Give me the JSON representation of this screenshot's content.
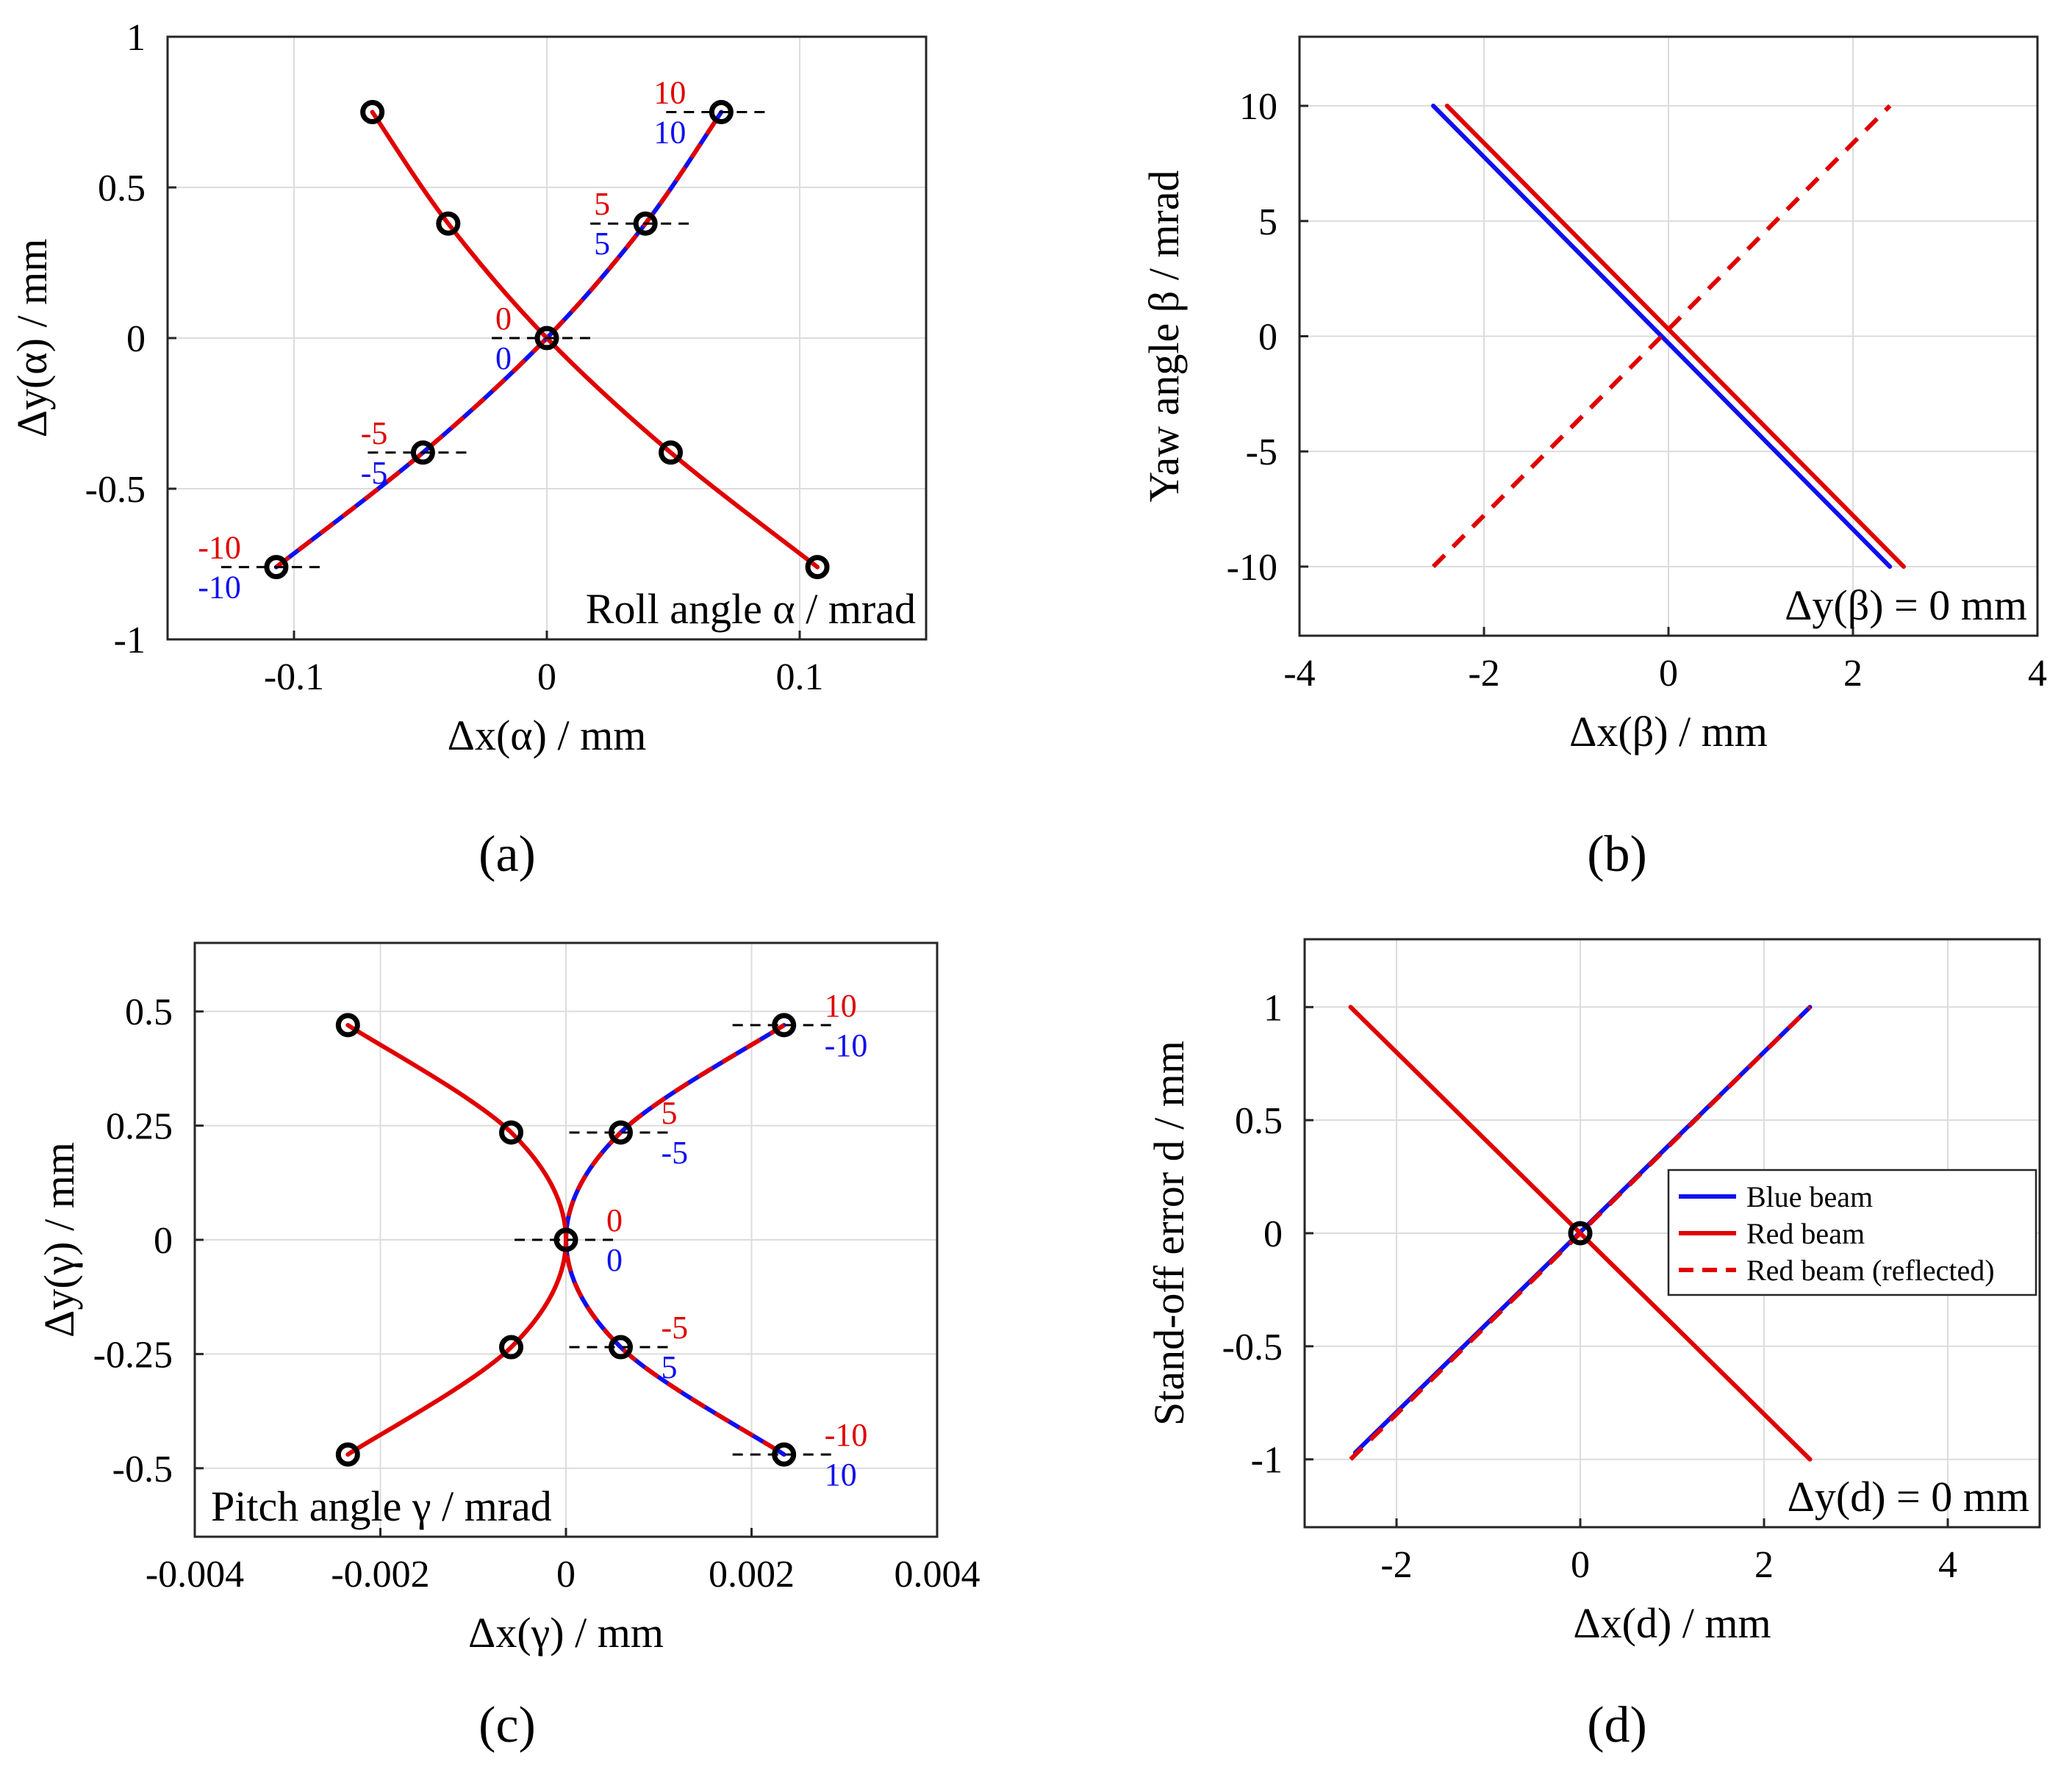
{
  "chart_data": [
    {
      "panel": "a",
      "type": "line",
      "xlabel": "Δx(α) / mm",
      "ylabel": "Δy(α) / mm",
      "annotation": "Roll angle α / mrad",
      "xlim": [
        -0.15,
        0.15
      ],
      "ylim": [
        -1,
        1
      ],
      "xticks": [
        -0.1,
        0,
        0.1
      ],
      "xtick_labels": [
        "-0.1",
        "0",
        "0.1"
      ],
      "yticks": [
        -1,
        -0.5,
        0,
        0.5,
        1
      ],
      "ytick_labels": [
        "-1",
        "-0.5",
        "0",
        "0.5",
        "1"
      ],
      "grid": true,
      "colors": {
        "blue": "#1010ee",
        "red": "#e00000",
        "marker": "#000000"
      },
      "series": [
        {
          "name": "Blue beam",
          "style": "solid-blue",
          "x": [
            -0.107,
            -0.049,
            0,
            0.039,
            0.069
          ],
          "y": [
            -0.76,
            -0.38,
            0,
            0.38,
            0.75
          ]
        },
        {
          "name": "Red beam",
          "style": "dashed-red",
          "x": [
            -0.107,
            -0.049,
            0,
            0.039,
            0.069
          ],
          "y": [
            -0.76,
            -0.38,
            0,
            0.38,
            0.75
          ]
        },
        {
          "name": "Red beam (reflected)",
          "style": "solid-red",
          "x": [
            -0.069,
            -0.039,
            0,
            0.049,
            0.107
          ],
          "y": [
            0.75,
            0.38,
            0,
            -0.38,
            -0.76
          ]
        }
      ],
      "markers": [
        {
          "x": -0.069,
          "y": 0.75
        },
        {
          "x": -0.039,
          "y": 0.38
        },
        {
          "x": 0,
          "y": 0
        },
        {
          "x": 0.049,
          "y": -0.38
        },
        {
          "x": 0.107,
          "y": -0.76
        },
        {
          "x": 0.069,
          "y": 0.75
        },
        {
          "x": 0.039,
          "y": 0.38
        },
        {
          "x": -0.049,
          "y": -0.38
        },
        {
          "x": -0.107,
          "y": -0.76
        }
      ],
      "value_labels": [
        {
          "x": 0.069,
          "y": 0.75,
          "red": "10",
          "blue": "10",
          "side": "left"
        },
        {
          "x": 0.039,
          "y": 0.38,
          "red": "5",
          "blue": "5",
          "side": "left"
        },
        {
          "x": 0,
          "y": 0,
          "red": "0",
          "blue": "0",
          "side": "left"
        },
        {
          "x": -0.049,
          "y": -0.38,
          "red": "-5",
          "blue": "-5",
          "side": "left"
        },
        {
          "x": -0.107,
          "y": -0.76,
          "red": "-10",
          "blue": "-10",
          "side": "left"
        }
      ]
    },
    {
      "panel": "b",
      "type": "line",
      "xlabel": "Δx(β) / mm",
      "ylabel": "Yaw angle β / mrad",
      "annotation": "Δy(β) = 0 mm",
      "xlim": [
        -4,
        4
      ],
      "ylim": [
        -13,
        13
      ],
      "xticks": [
        -4,
        -2,
        0,
        2,
        4
      ],
      "xtick_labels": [
        "-4",
        "-2",
        "0",
        "2",
        "4"
      ],
      "yticks": [
        -10,
        -5,
        0,
        5,
        10
      ],
      "ytick_labels": [
        "-10",
        "-5",
        "0",
        "5",
        "10"
      ],
      "grid": true,
      "series": [
        {
          "name": "Blue beam",
          "style": "solid-blue",
          "x": [
            -2.55,
            2.4
          ],
          "y": [
            10,
            -10
          ]
        },
        {
          "name": "Red beam",
          "style": "solid-red",
          "x": [
            -2.4,
            2.55
          ],
          "y": [
            10,
            -10
          ]
        },
        {
          "name": "Red beam (reflected)",
          "style": "dashed-red",
          "x": [
            -2.55,
            2.4
          ],
          "y": [
            -10,
            10
          ]
        }
      ]
    },
    {
      "panel": "c",
      "type": "line",
      "xlabel": "Δx(γ) / mm",
      "ylabel": "Δy(γ) / mm",
      "annotation": "Pitch angle γ / mrad",
      "xlim": [
        -0.004,
        0.004
      ],
      "ylim": [
        -0.65,
        0.65
      ],
      "xticks": [
        -0.004,
        -0.002,
        0,
        0.002,
        0.004
      ],
      "xtick_labels": [
        "-0.004",
        "-0.002",
        "0",
        "0.002",
        "0.004"
      ],
      "yticks": [
        -0.5,
        -0.25,
        0,
        0.25,
        0.5
      ],
      "ytick_labels": [
        "-0.5",
        "-0.25",
        "0",
        "0.25",
        "0.5"
      ],
      "grid": true,
      "series": [
        {
          "name": "Blue beam",
          "style": "solid-blue",
          "x": [
            0.00235,
            0.00059,
            0,
            0.00059,
            0.00235
          ],
          "y": [
            0.47,
            0.235,
            0,
            -0.235,
            -0.47
          ]
        },
        {
          "name": "Red beam",
          "style": "dashed-red",
          "x": [
            0.00235,
            0.00059,
            0,
            0.00059,
            0.00235
          ],
          "y": [
            0.47,
            0.235,
            0,
            -0.235,
            -0.47
          ]
        },
        {
          "name": "Red beam (reflected)",
          "style": "solid-red",
          "x": [
            -0.00235,
            -0.00059,
            0,
            -0.00059,
            -0.00235
          ],
          "y": [
            0.47,
            0.235,
            0,
            -0.235,
            -0.47
          ]
        }
      ],
      "markers": [
        {
          "x": -0.00235,
          "y": 0.47
        },
        {
          "x": -0.00059,
          "y": 0.235
        },
        {
          "x": 0,
          "y": 0
        },
        {
          "x": -0.00059,
          "y": -0.235
        },
        {
          "x": -0.00235,
          "y": -0.47
        },
        {
          "x": 0.00235,
          "y": 0.47
        },
        {
          "x": 0.00059,
          "y": 0.235
        },
        {
          "x": 0.00059,
          "y": -0.235
        },
        {
          "x": 0.00235,
          "y": -0.47
        }
      ],
      "value_labels": [
        {
          "x": 0.00235,
          "y": 0.47,
          "red": "10",
          "blue": "-10",
          "side": "right"
        },
        {
          "x": 0.00059,
          "y": 0.235,
          "red": "5",
          "blue": "-5",
          "side": "right"
        },
        {
          "x": 0,
          "y": 0,
          "red": "0",
          "blue": "0",
          "side": "right"
        },
        {
          "x": 0.00059,
          "y": -0.235,
          "red": "-5",
          "blue": "5",
          "side": "right"
        },
        {
          "x": 0.00235,
          "y": -0.47,
          "red": "-10",
          "blue": "10",
          "side": "right"
        }
      ]
    },
    {
      "panel": "d",
      "type": "line",
      "xlabel": "Δx(d) / mm",
      "ylabel": "Stand-off error d / mm",
      "annotation": "Δy(d) = 0 mm",
      "xlim": [
        -3,
        5
      ],
      "ylim": [
        -1.3,
        1.3
      ],
      "xticks": [
        -2,
        0,
        2,
        4
      ],
      "xtick_labels": [
        "-2",
        "0",
        "2",
        "4"
      ],
      "yticks": [
        -1,
        -0.5,
        0,
        0.5,
        1
      ],
      "ytick_labels": [
        "-1",
        "-0.5",
        "0",
        "0.5",
        "1"
      ],
      "grid": true,
      "legend": {
        "position": "center-right",
        "entries": [
          {
            "label": "Blue beam",
            "style": "solid-blue"
          },
          {
            "label": "Red beam",
            "style": "solid-red"
          },
          {
            "label": "Red beam (reflected)",
            "style": "dashed-red"
          }
        ]
      },
      "series": [
        {
          "name": "Blue beam",
          "style": "solid-blue",
          "x": [
            -2.45,
            2.5
          ],
          "y": [
            -0.97,
            1
          ]
        },
        {
          "name": "Red beam",
          "style": "dashed-red",
          "x": [
            -2.5,
            2.5
          ],
          "y": [
            -1,
            1
          ]
        },
        {
          "name": "Red beam (reflected)",
          "style": "solid-red",
          "x": [
            -2.5,
            2.5
          ],
          "y": [
            1,
            -1
          ]
        }
      ],
      "markers": [
        {
          "x": 0,
          "y": 0
        }
      ]
    }
  ],
  "panel_labels": [
    "(a)",
    "(b)",
    "(c)",
    "(d)"
  ]
}
